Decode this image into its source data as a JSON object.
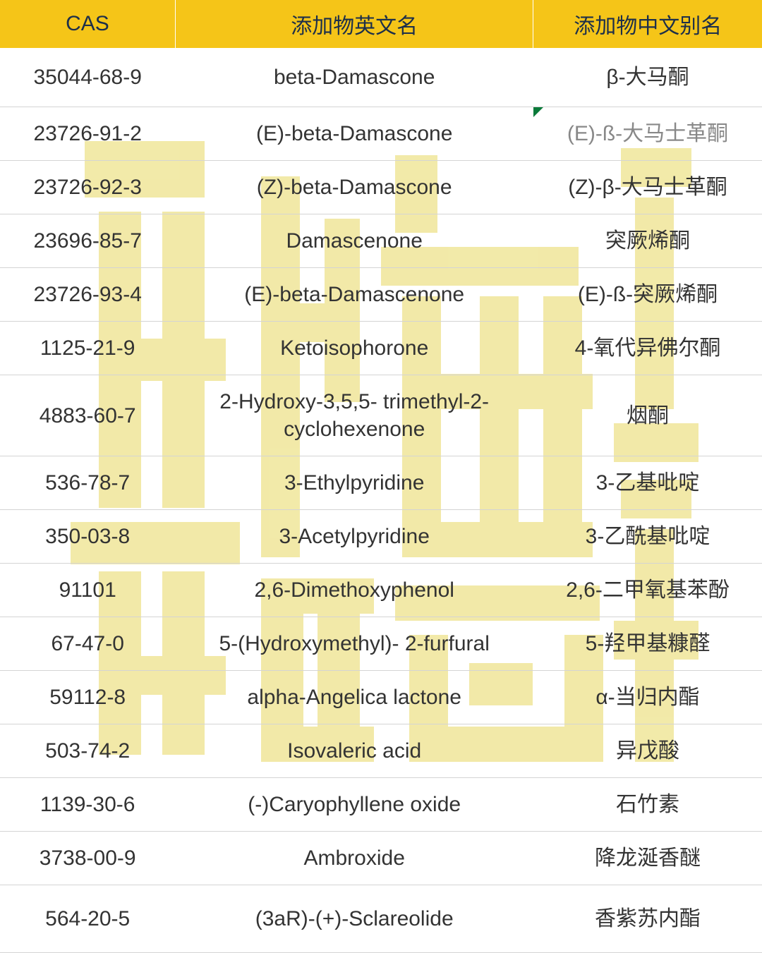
{
  "table": {
    "columns": {
      "cas": "CAS",
      "en": "添加物英文名",
      "cn": "添加物中文别名"
    },
    "rows": [
      {
        "cas": "35044-68-9",
        "en": "beta-Damascone",
        "cn": "β-大马酮",
        "special": false
      },
      {
        "cas": "23726-91-2",
        "en": "(E)-beta-Damascone",
        "cn": "(E)-ß-大马士革酮",
        "special": true
      },
      {
        "cas": "23726-92-3",
        "en": "(Z)-beta-Damascone",
        "cn": "(Z)-β-大马士革酮",
        "special": false
      },
      {
        "cas": "23696-85-7",
        "en": "Damascenone",
        "cn": "突厥烯酮",
        "special": false
      },
      {
        "cas": "23726-93-4",
        "en": "(E)-beta-Damascenone",
        "cn": "(E)-ß-突厥烯酮",
        "special": false
      },
      {
        "cas": "1125-21-9",
        "en": "Ketoisophorone",
        "cn": "4-氧代异佛尔酮",
        "special": false
      },
      {
        "cas": "4883-60-7",
        "en": "2-Hydroxy-3,5,5- trimethyl-2-cyclohexenone",
        "cn": "烟酮",
        "special": false
      },
      {
        "cas": "536-78-7",
        "en": "3-Ethylpyridine",
        "cn": "3-乙基吡啶",
        "special": false
      },
      {
        "cas": "350-03-8",
        "en": "3-Acetylpyridine",
        "cn": "3-乙酰基吡啶",
        "special": false
      },
      {
        "cas": "91101",
        "en": "2,6-Dimethoxyphenol",
        "cn": "2,6-二甲氧基苯酚",
        "special": false
      },
      {
        "cas": "67-47-0",
        "en": "5-(Hydroxymethyl)- 2-furfural",
        "cn": "5-羟甲基糠醛",
        "special": false
      },
      {
        "cas": "59112-8",
        "en": "alpha-Angelica lactone",
        "cn": "α-当归内酯",
        "special": false
      },
      {
        "cas": "503-74-2",
        "en": "Isovaleric acid",
        "cn": "异戊酸",
        "special": false
      },
      {
        "cas": "1139-30-6",
        "en": "(-)Caryophyllene oxide",
        "cn": "石竹素",
        "special": false
      },
      {
        "cas": "3738-00-9",
        "en": "Ambroxide",
        "cn": "降龙涎香醚",
        "special": false
      },
      {
        "cas": "564-20-5",
        "en": "(3aR)-(+)-Sclareolide",
        "cn": "香紫苏内酯",
        "special": false
      }
    ],
    "header_bg": "#f5c518",
    "header_text_color": "#1d2f4a",
    "border_color": "#d4d4d4",
    "font_size": 30,
    "watermark_color": "#f0e69a",
    "marker_color": "#0a7a3a"
  }
}
